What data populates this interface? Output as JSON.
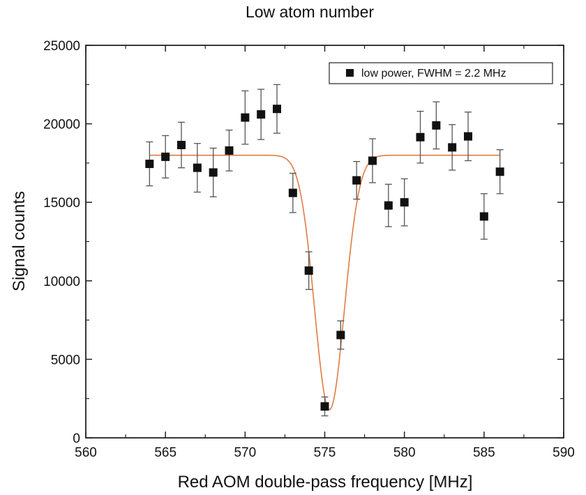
{
  "chart_data": {
    "type": "scatter",
    "title": "Low atom number",
    "xlabel": "Red AOM double-pass frequency [MHz]",
    "ylabel": "Signal counts",
    "xlim": [
      560,
      590
    ],
    "ylim": [
      0,
      25000
    ],
    "x_ticks": [
      560,
      565,
      570,
      575,
      580,
      585,
      590
    ],
    "y_ticks": [
      0,
      5000,
      10000,
      15000,
      20000,
      25000
    ],
    "x_tick_labels": [
      "560",
      "565",
      "570",
      "575",
      "580",
      "585",
      "590"
    ],
    "y_tick_labels": [
      "0",
      "5000",
      "10000",
      "15000",
      "20000",
      "25000"
    ],
    "grid": false,
    "legend_position": "top-right",
    "series": [
      {
        "name": "low power, FWHM = 2.2 MHz",
        "marker": "square",
        "color": "#111111",
        "points": [
          {
            "x": 564,
            "y": 17450,
            "err": 1400
          },
          {
            "x": 565,
            "y": 17900,
            "err": 1350
          },
          {
            "x": 566,
            "y": 18650,
            "err": 1450
          },
          {
            "x": 567,
            "y": 17200,
            "err": 1550
          },
          {
            "x": 568,
            "y": 16900,
            "err": 1550
          },
          {
            "x": 569,
            "y": 18300,
            "err": 1300
          },
          {
            "x": 570,
            "y": 20400,
            "err": 1700
          },
          {
            "x": 571,
            "y": 20600,
            "err": 1600
          },
          {
            "x": 572,
            "y": 20950,
            "err": 1550
          },
          {
            "x": 573,
            "y": 15600,
            "err": 1250
          },
          {
            "x": 574,
            "y": 10650,
            "err": 1200
          },
          {
            "x": 575,
            "y": 2000,
            "err": 600
          },
          {
            "x": 576,
            "y": 6550,
            "err": 900
          },
          {
            "x": 577,
            "y": 16400,
            "err": 1200
          },
          {
            "x": 578,
            "y": 17650,
            "err": 1400
          },
          {
            "x": 579,
            "y": 14800,
            "err": 1350
          },
          {
            "x": 580,
            "y": 15000,
            "err": 1500
          },
          {
            "x": 581,
            "y": 19150,
            "err": 1650
          },
          {
            "x": 582,
            "y": 19900,
            "err": 1500
          },
          {
            "x": 583,
            "y": 18500,
            "err": 1450
          },
          {
            "x": 584,
            "y": 19200,
            "err": 1550
          },
          {
            "x": 585,
            "y": 14100,
            "err": 1450
          },
          {
            "x": 586,
            "y": 16950,
            "err": 1400
          }
        ]
      },
      {
        "type": "line",
        "color": "#e07b45",
        "fit": {
          "baseline": 18000,
          "depth": 16200,
          "center": 575.3,
          "fwhm": 2.2
        },
        "x_range": [
          564,
          586
        ]
      }
    ]
  }
}
